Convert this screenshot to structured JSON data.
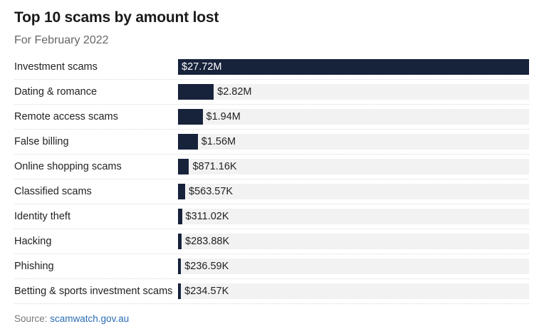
{
  "title": "Top 10 scams by amount lost",
  "subtitle": "For February 2022",
  "source_label": "Source: ",
  "source_link": "scamwatch.gov.au",
  "colors": {
    "bar": "#17223b",
    "track": "#f2f2f2",
    "link": "#2a6db5"
  },
  "chart_data": {
    "type": "bar",
    "orientation": "horizontal",
    "title": "Top 10 scams by amount lost",
    "subtitle": "For February 2022",
    "categories": [
      "Investment scams",
      "Dating & romance",
      "Remote access scams",
      "False billing",
      "Online shopping scams",
      "Classified scams",
      "Identity theft",
      "Hacking",
      "Phishing",
      "Betting & sports investment scams"
    ],
    "values": [
      27720000,
      2820000,
      1940000,
      1560000,
      871160,
      563570,
      311020,
      283880,
      236590,
      234570
    ],
    "labels": [
      "$27.72M",
      "$2.82M",
      "$1.94M",
      "$1.56M",
      "$871.16K",
      "$563.57K",
      "$311.02K",
      "$283.88K",
      "$236.59K",
      "$234.57K"
    ],
    "xlim": [
      0,
      27720000
    ],
    "grid": false,
    "legend": "none"
  }
}
